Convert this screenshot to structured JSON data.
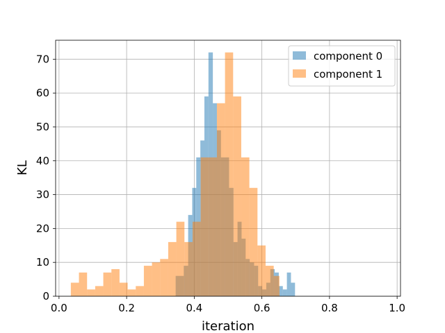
{
  "chart_data": {
    "type": "histogram",
    "title": "",
    "xlabel": "iteration",
    "ylabel": "KL",
    "xlim": [
      -0.01,
      1.01
    ],
    "ylim": [
      0,
      75.6
    ],
    "xticks": [
      0.0,
      0.2,
      0.4,
      0.6,
      0.8,
      1.0
    ],
    "xtick_labels": [
      "0.0",
      "0.2",
      "0.4",
      "0.6",
      "0.8",
      "1.0"
    ],
    "yticks": [
      0,
      10,
      20,
      30,
      40,
      50,
      60,
      70
    ],
    "ytick_labels": [
      "0",
      "10",
      "20",
      "30",
      "40",
      "50",
      "60",
      "70"
    ],
    "grid": true,
    "legend_position": "top-right",
    "series": [
      {
        "name": "component 0",
        "color": "#1f77b4",
        "alpha": 0.5,
        "bins": [
          [
            0.345,
            0.357,
            6
          ],
          [
            0.357,
            0.369,
            6
          ],
          [
            0.369,
            0.382,
            9
          ],
          [
            0.382,
            0.394,
            24
          ],
          [
            0.394,
            0.406,
            32
          ],
          [
            0.406,
            0.418,
            41
          ],
          [
            0.418,
            0.43,
            46
          ],
          [
            0.43,
            0.442,
            59
          ],
          [
            0.442,
            0.455,
            72
          ],
          [
            0.455,
            0.467,
            57
          ],
          [
            0.467,
            0.479,
            49
          ],
          [
            0.479,
            0.491,
            41
          ],
          [
            0.491,
            0.503,
            41
          ],
          [
            0.503,
            0.516,
            32
          ],
          [
            0.516,
            0.528,
            16
          ],
          [
            0.528,
            0.54,
            22
          ],
          [
            0.54,
            0.552,
            17
          ],
          [
            0.552,
            0.564,
            11
          ],
          [
            0.564,
            0.577,
            10
          ],
          [
            0.577,
            0.589,
            9
          ],
          [
            0.589,
            0.601,
            3
          ],
          [
            0.601,
            0.613,
            2
          ],
          [
            0.613,
            0.625,
            4
          ],
          [
            0.625,
            0.638,
            8
          ],
          [
            0.638,
            0.65,
            7
          ],
          [
            0.65,
            0.662,
            3
          ],
          [
            0.662,
            0.674,
            2
          ],
          [
            0.674,
            0.686,
            7
          ],
          [
            0.686,
            0.698,
            4
          ]
        ]
      },
      {
        "name": "component 1",
        "color": "#ff7f0e",
        "alpha": 0.5,
        "bins": [
          [
            0.035,
            0.059,
            4
          ],
          [
            0.059,
            0.083,
            7
          ],
          [
            0.083,
            0.107,
            2
          ],
          [
            0.107,
            0.131,
            3
          ],
          [
            0.131,
            0.155,
            7
          ],
          [
            0.155,
            0.179,
            8
          ],
          [
            0.179,
            0.203,
            4
          ],
          [
            0.203,
            0.227,
            2
          ],
          [
            0.227,
            0.251,
            3
          ],
          [
            0.251,
            0.275,
            9
          ],
          [
            0.275,
            0.299,
            10
          ],
          [
            0.299,
            0.323,
            11
          ],
          [
            0.323,
            0.347,
            16
          ],
          [
            0.347,
            0.371,
            22
          ],
          [
            0.371,
            0.395,
            16
          ],
          [
            0.395,
            0.419,
            22
          ],
          [
            0.419,
            0.443,
            41
          ],
          [
            0.443,
            0.467,
            41
          ],
          [
            0.467,
            0.491,
            57
          ],
          [
            0.491,
            0.515,
            72
          ],
          [
            0.515,
            0.539,
            59
          ],
          [
            0.539,
            0.563,
            41
          ],
          [
            0.563,
            0.587,
            32
          ],
          [
            0.587,
            0.611,
            15
          ],
          [
            0.611,
            0.635,
            9
          ],
          [
            0.635,
            0.652,
            6
          ]
        ]
      }
    ]
  }
}
